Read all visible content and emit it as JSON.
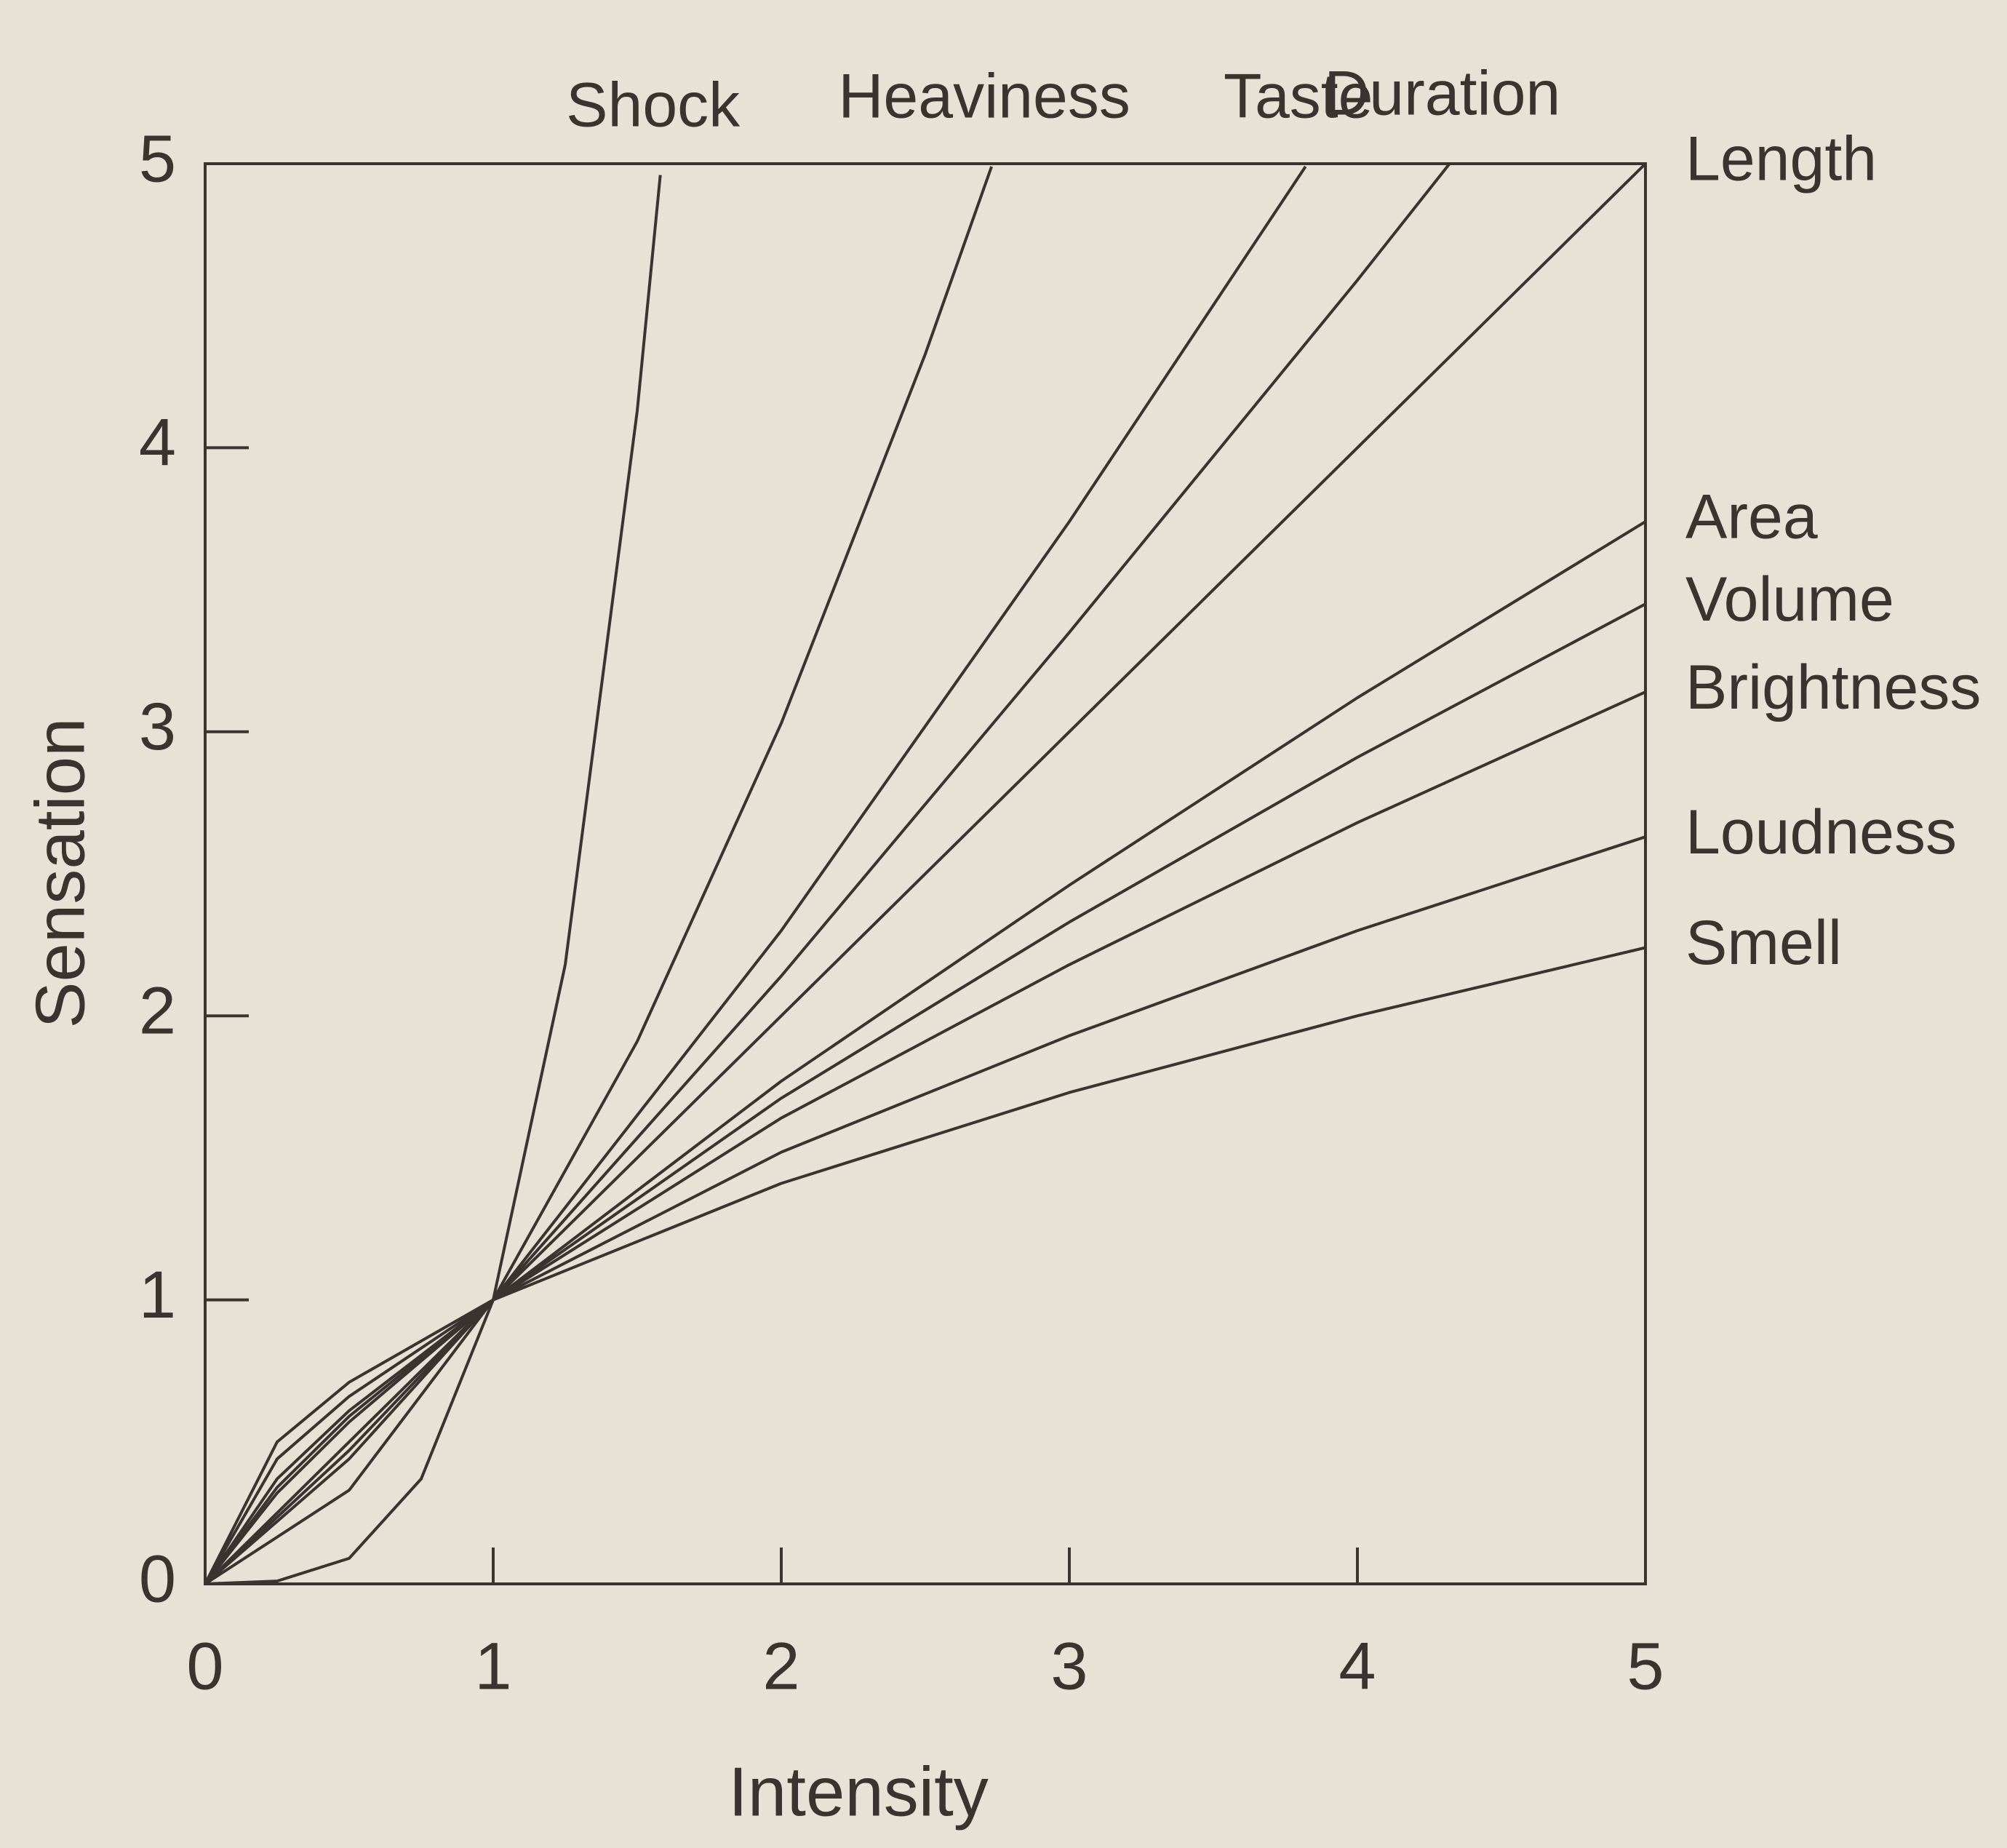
{
  "chart_data": {
    "type": "line",
    "xlabel": "Intensity",
    "ylabel": "Sensation",
    "xlim": [
      0,
      5
    ],
    "ylim": [
      0,
      5
    ],
    "xticks": [
      0,
      1,
      2,
      3,
      4,
      5
    ],
    "yticks": [
      0,
      1,
      2,
      3,
      4,
      5
    ],
    "grid": false,
    "color": "#3a3330",
    "series": [
      {
        "name": "Shock",
        "x": [
          0,
          0.25,
          0.5,
          0.75,
          1,
          1.25,
          1.5,
          1.58
        ],
        "values": [
          0,
          0.01,
          0.09,
          0.37,
          1,
          2.18,
          4.13,
          4.96
        ]
      },
      {
        "name": "Heaviness",
        "x": [
          0,
          0.5,
          1,
          1.5,
          2,
          2.5,
          2.73
        ],
        "values": [
          0,
          0.33,
          1,
          1.91,
          3.03,
          4.33,
          4.99
        ]
      },
      {
        "name": "Taste",
        "x": [
          0,
          0.5,
          1,
          2,
          3,
          3.82
        ],
        "values": [
          0,
          0.44,
          1,
          2.3,
          3.74,
          4.99
        ]
      },
      {
        "name": "Duration",
        "x": [
          0,
          0.5,
          1,
          2,
          3,
          4,
          4.32
        ],
        "values": [
          0,
          0.47,
          1,
          2.14,
          3.35,
          4.59,
          5
        ]
      },
      {
        "name": "Length",
        "x": [
          0,
          1,
          5
        ],
        "values": [
          0,
          1,
          5
        ]
      },
      {
        "name": "Area",
        "x": [
          0,
          0.25,
          0.5,
          1,
          2,
          3,
          4,
          5
        ],
        "values": [
          0,
          0.32,
          0.57,
          1,
          1.77,
          2.46,
          3.12,
          3.74
        ]
      },
      {
        "name": "Volume",
        "x": [
          0,
          0.25,
          0.5,
          1,
          2,
          3,
          4,
          5
        ],
        "values": [
          0,
          0.34,
          0.59,
          1,
          1.71,
          2.33,
          2.91,
          3.45
        ]
      },
      {
        "name": "Brightness",
        "x": [
          0,
          0.25,
          0.5,
          1,
          2,
          3,
          4,
          5
        ],
        "values": [
          0,
          0.37,
          0.61,
          1,
          1.64,
          2.18,
          2.68,
          3.14
        ]
      },
      {
        "name": "Loudness",
        "x": [
          0,
          0.25,
          0.5,
          1,
          2,
          3,
          4,
          5
        ],
        "values": [
          0,
          0.44,
          0.66,
          1,
          1.52,
          1.93,
          2.3,
          2.63
        ]
      },
      {
        "name": "Smell",
        "x": [
          0,
          0.25,
          0.5,
          1,
          2,
          3,
          4,
          5
        ],
        "values": [
          0,
          0.5,
          0.71,
          1,
          1.41,
          1.73,
          2,
          2.24
        ]
      }
    ]
  }
}
